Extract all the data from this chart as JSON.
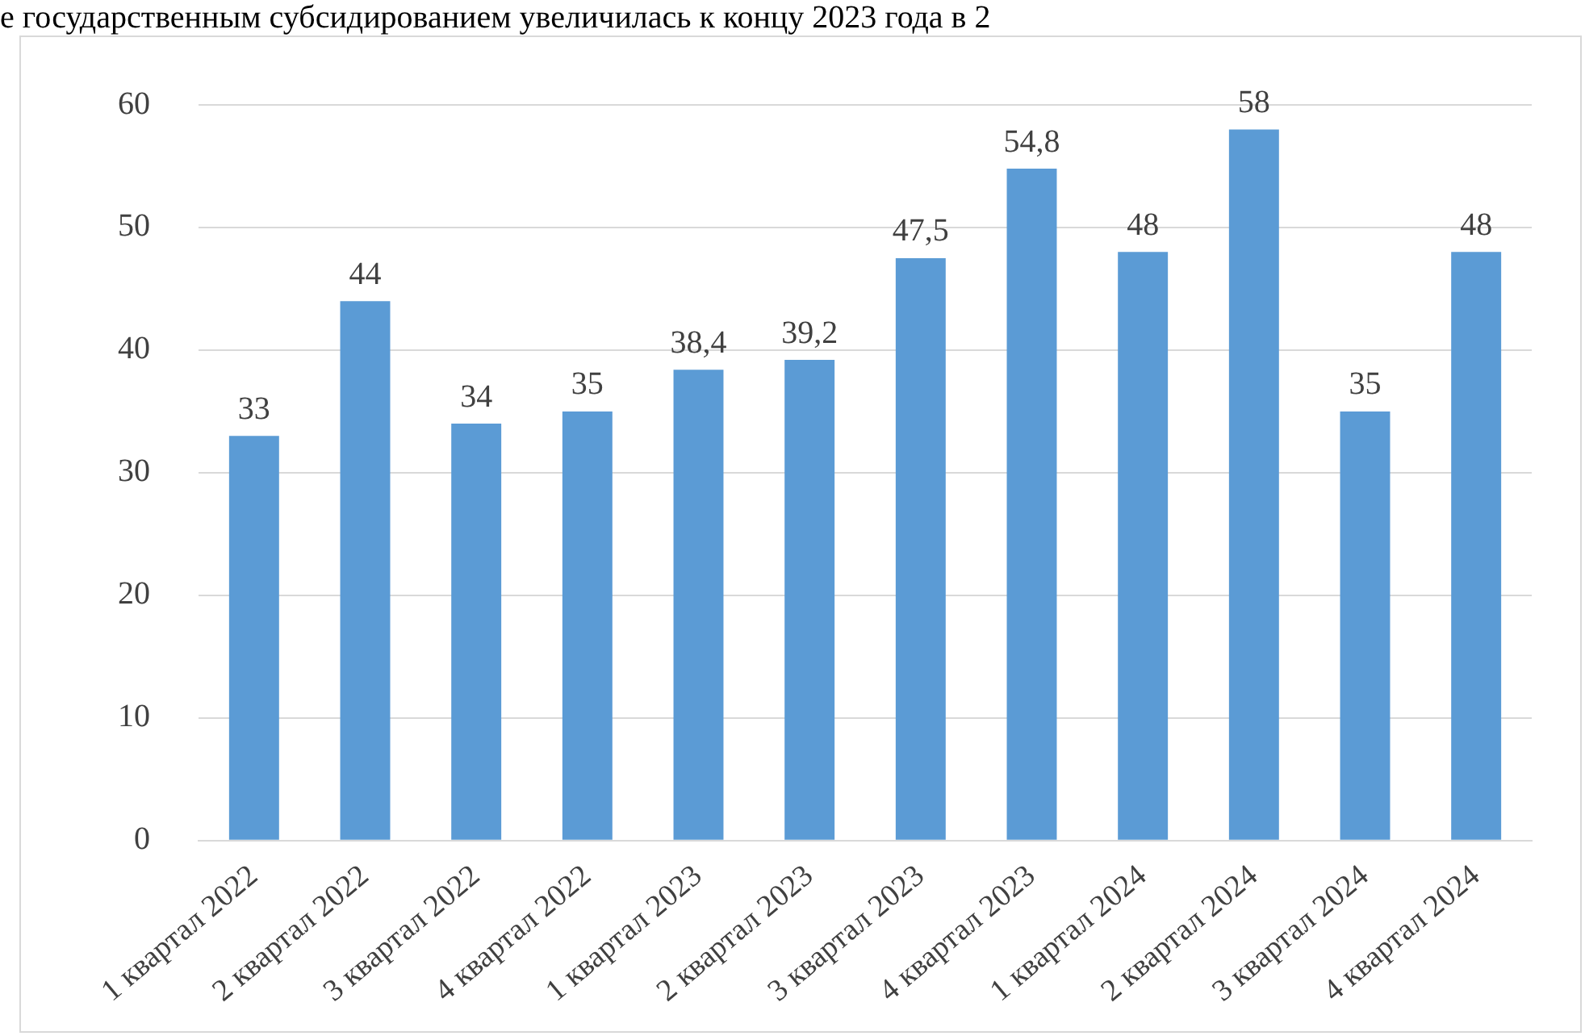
{
  "chart_data": {
    "type": "bar",
    "annotations": [
      "е государственным субсидированием увеличилась к концу 2023 года в 2"
    ],
    "categories": [
      "1 квартал 2022",
      "2 квартал 2022",
      "3 квартал 2022",
      "4 квартал 2022",
      "1 квартал 2023",
      "2 квартал 2023",
      "3 квартал 2023",
      "4 квартал 2023",
      "1 квартал 2024",
      "2 квартал 2024",
      "3 квартал 2024",
      "4 квартал 2024"
    ],
    "values": [
      33,
      44,
      34,
      35,
      38.4,
      39.2,
      47.5,
      54.8,
      48,
      58,
      35,
      48
    ],
    "value_labels": [
      "33",
      "44",
      "34",
      "35",
      "38,4",
      "39,2",
      "47,5",
      "54,8",
      "48",
      "58",
      "35",
      "48"
    ],
    "color": "#5b9bd5",
    "ylim": [
      0,
      60
    ],
    "yticks": [
      0,
      10,
      20,
      30,
      40,
      50,
      60
    ],
    "grid": "y",
    "legend": false
  }
}
